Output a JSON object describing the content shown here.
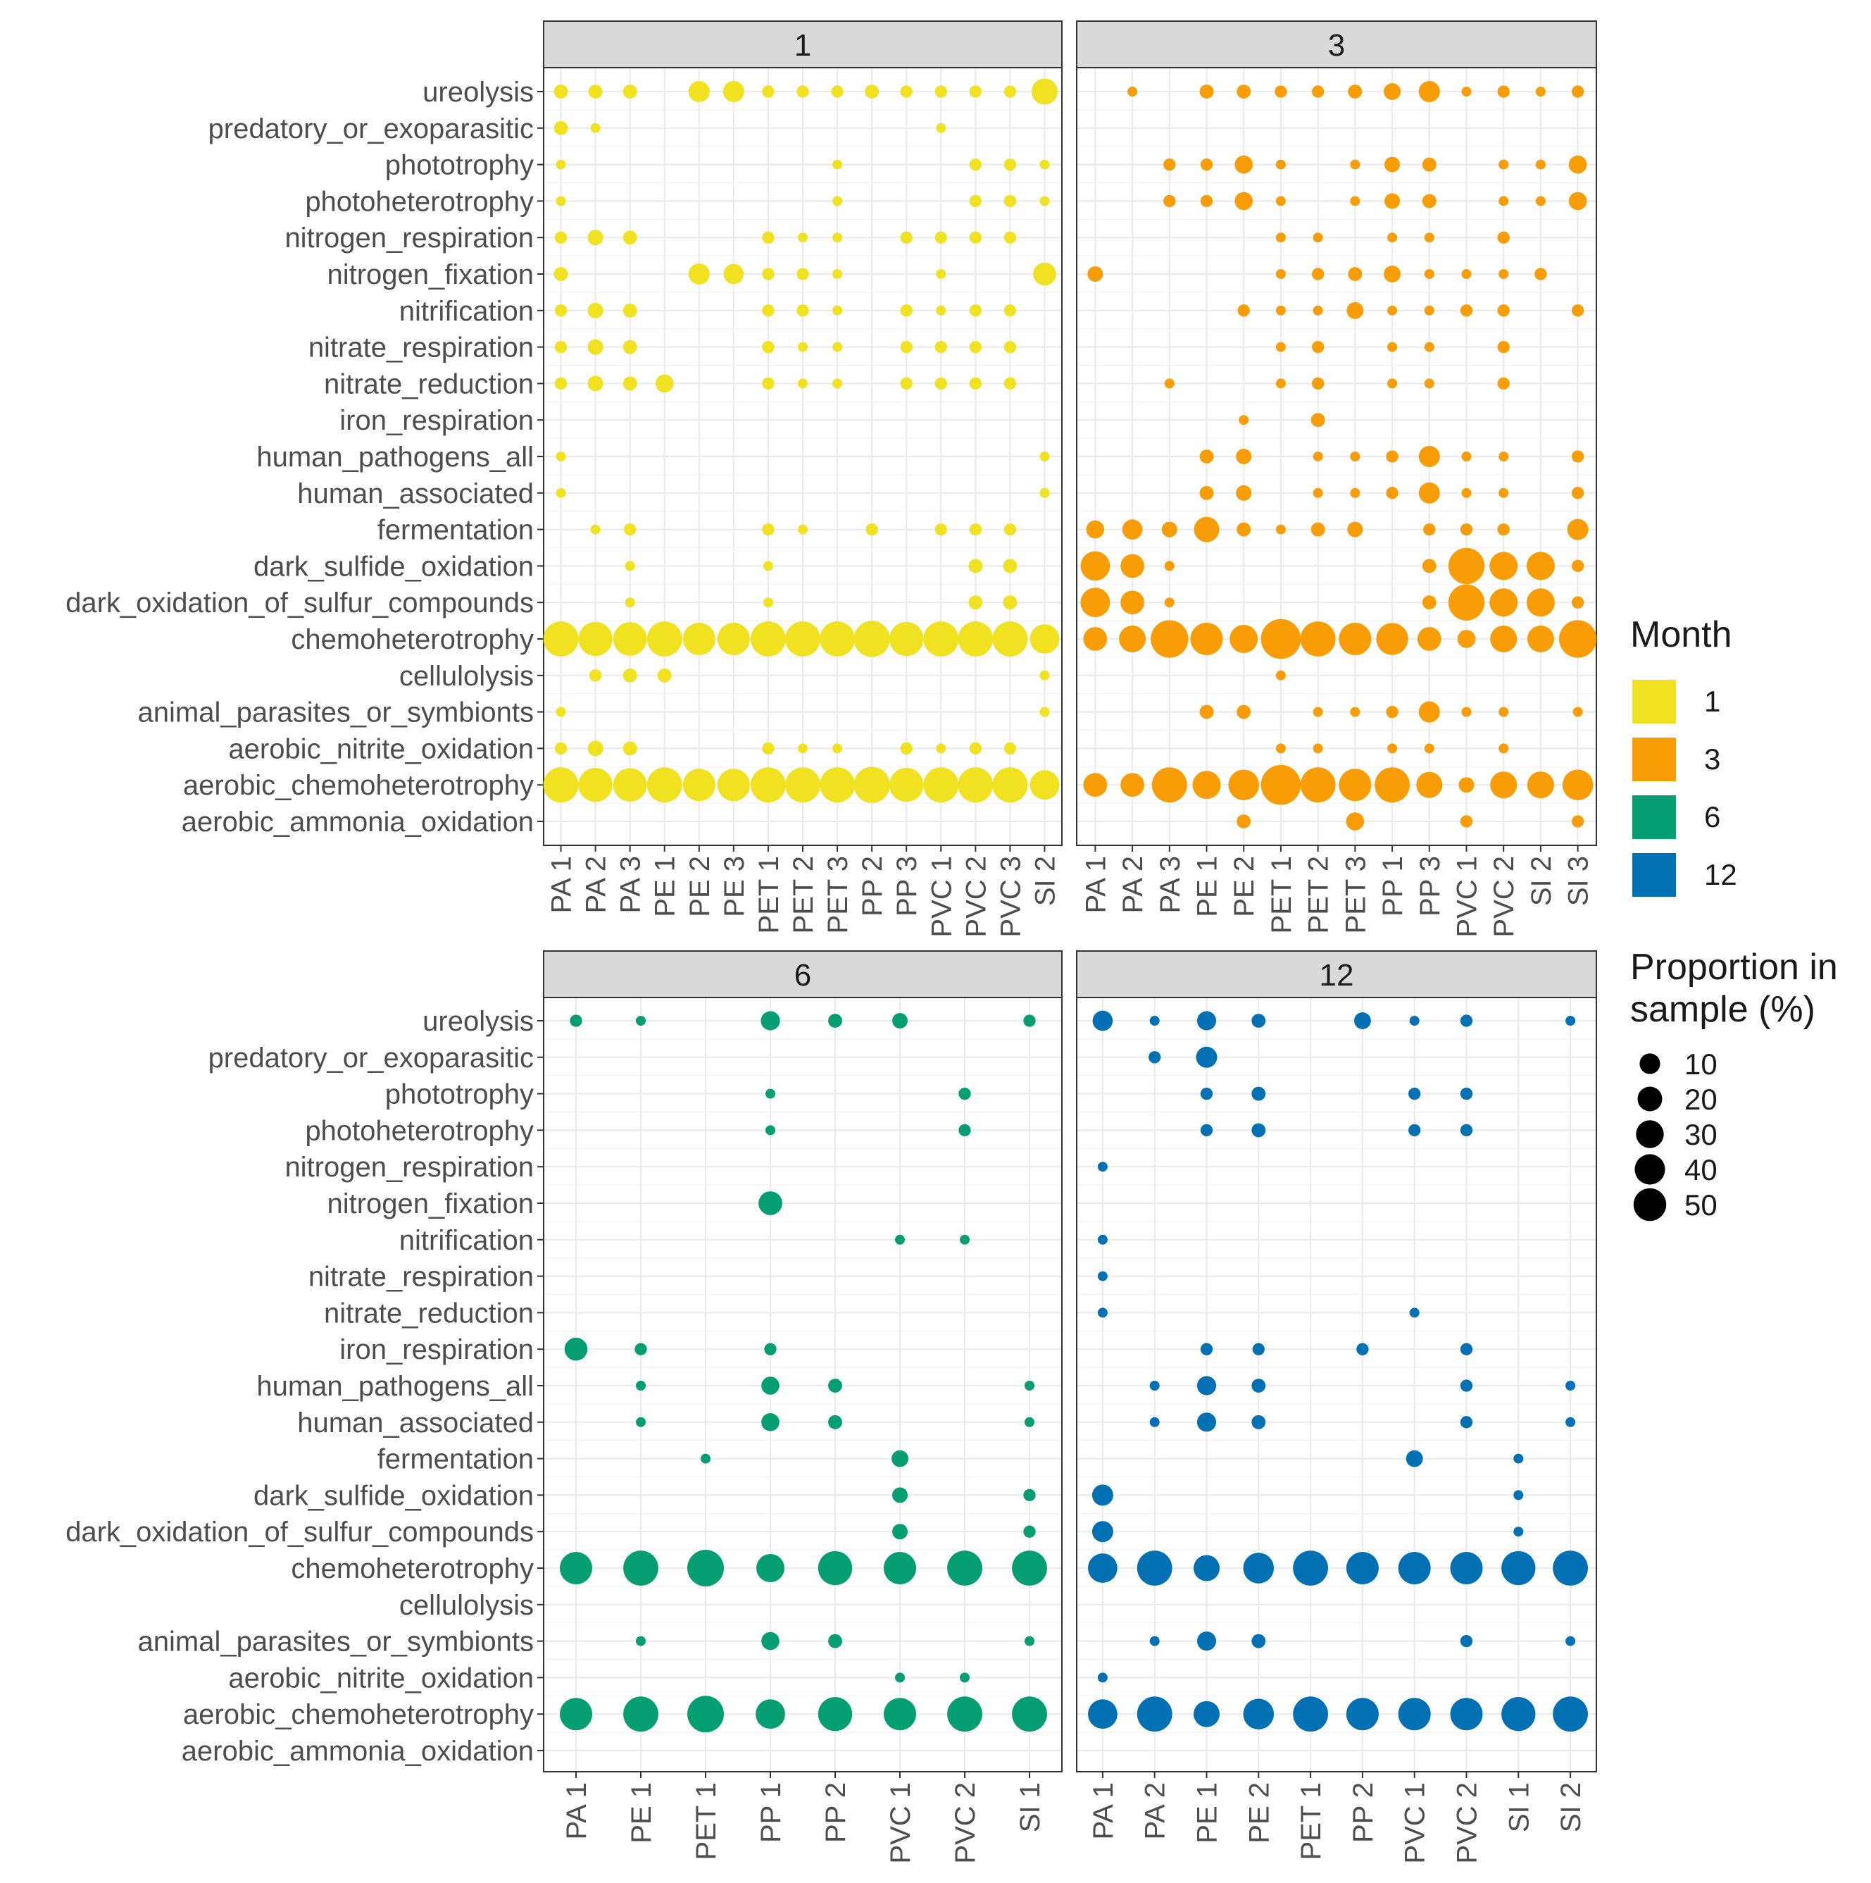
{
  "legend": {
    "color_title": "Month",
    "size_title_lines": [
      "Proportion in",
      "sample (%)"
    ],
    "month_entries": [
      {
        "label": "1",
        "color": "#F0E221"
      },
      {
        "label": "3",
        "color": "#F99D06"
      },
      {
        "label": "6",
        "color": "#049E72"
      },
      {
        "label": "12",
        "color": "#0271B3"
      }
    ],
    "size_entries": [
      {
        "label": "10",
        "value": 10
      },
      {
        "label": "20",
        "value": 20
      },
      {
        "label": "30",
        "value": 30
      },
      {
        "label": "40",
        "value": 40
      },
      {
        "label": "50",
        "value": 50
      }
    ]
  },
  "chart_data": {
    "type": "scatter",
    "subtype": "bubble grid, faceted by month",
    "size_variable": "Proportion in sample (%)",
    "color_variable": "Month",
    "functions": [
      "ureolysis",
      "predatory_or_exoparasitic",
      "phototrophy",
      "photoheterotrophy",
      "nitrogen_respiration",
      "nitrogen_fixation",
      "nitrification",
      "nitrate_respiration",
      "nitrate_reduction",
      "iron_respiration",
      "human_pathogens_all",
      "human_associated",
      "fermentation",
      "dark_sulfide_oxidation",
      "dark_oxidation_of_sulfur_compounds",
      "chemoheterotrophy",
      "cellulolysis",
      "animal_parasites_or_symbionts",
      "aerobic_nitrite_oxidation",
      "aerobic_chemoheterotrophy",
      "aerobic_ammonia_oxidation"
    ],
    "facets": [
      {
        "title": "1",
        "color": "#F0E221",
        "samples": [
          "PA 1",
          "PA 2",
          "PA 3",
          "PE 1",
          "PE 2",
          "PE 3",
          "PET 1",
          "PET 2",
          "PET 3",
          "PP 2",
          "PP 3",
          "PVC 1",
          "PVC 2",
          "PVC 3",
          "SI 2"
        ],
        "rows": [
          [
            3,
            3,
            3,
            0,
            9,
            9,
            2,
            2,
            2,
            3,
            2,
            2,
            2,
            2,
            15
          ],
          [
            3,
            1,
            0,
            0,
            0,
            0,
            0,
            0,
            0,
            0,
            0,
            1,
            0,
            0,
            0
          ],
          [
            1,
            0,
            0,
            0,
            0,
            0,
            0,
            0,
            1,
            0,
            0,
            0,
            2,
            2,
            1
          ],
          [
            1,
            0,
            0,
            0,
            0,
            0,
            0,
            0,
            1,
            0,
            0,
            0,
            2,
            2,
            1
          ],
          [
            2,
            4,
            3,
            0,
            0,
            0,
            2,
            1,
            1,
            0,
            2,
            2,
            2,
            2,
            0
          ],
          [
            3,
            0,
            0,
            0,
            9,
            8,
            2,
            2,
            1,
            0,
            0,
            1,
            0,
            0,
            11
          ],
          [
            2,
            4,
            3,
            0,
            0,
            0,
            2,
            2,
            1,
            0,
            2,
            1,
            2,
            2,
            0
          ],
          [
            2,
            4,
            3,
            0,
            0,
            0,
            2,
            1,
            1,
            0,
            2,
            2,
            2,
            2,
            0
          ],
          [
            2,
            4,
            3,
            6,
            0,
            0,
            2,
            1,
            1,
            0,
            2,
            2,
            2,
            2,
            0
          ],
          [
            0,
            0,
            0,
            0,
            0,
            0,
            0,
            0,
            0,
            0,
            0,
            0,
            0,
            0,
            0
          ],
          [
            1,
            0,
            0,
            0,
            0,
            0,
            0,
            0,
            0,
            0,
            0,
            0,
            0,
            0,
            1
          ],
          [
            1,
            0,
            0,
            0,
            0,
            0,
            0,
            0,
            0,
            0,
            0,
            0,
            0,
            0,
            1
          ],
          [
            0,
            1,
            2,
            0,
            0,
            0,
            2,
            1,
            0,
            2,
            0,
            2,
            2,
            2,
            0
          ],
          [
            0,
            0,
            1,
            0,
            0,
            0,
            1,
            0,
            0,
            0,
            0,
            0,
            3,
            3,
            0
          ],
          [
            0,
            0,
            1,
            0,
            0,
            0,
            1,
            0,
            0,
            0,
            0,
            0,
            3,
            3,
            0
          ],
          [
            30,
            28,
            27,
            30,
            25,
            25,
            30,
            30,
            30,
            32,
            28,
            30,
            30,
            30,
            20
          ],
          [
            0,
            2,
            3,
            3,
            0,
            0,
            0,
            0,
            0,
            0,
            0,
            0,
            0,
            0,
            1
          ],
          [
            1,
            0,
            0,
            0,
            0,
            0,
            0,
            0,
            0,
            0,
            0,
            0,
            0,
            0,
            1
          ],
          [
            2,
            4,
            3,
            0,
            0,
            0,
            2,
            1,
            1,
            0,
            2,
            1,
            2,
            2,
            0
          ],
          [
            30,
            28,
            27,
            30,
            25,
            25,
            30,
            30,
            30,
            32,
            28,
            30,
            30,
            30,
            20
          ],
          [
            0,
            0,
            0,
            0,
            0,
            0,
            0,
            0,
            0,
            0,
            0,
            0,
            0,
            0,
            0
          ]
        ]
      },
      {
        "title": "3",
        "color": "#F99D06",
        "samples": [
          "PA 1",
          "PA 2",
          "PA 3",
          "PE 1",
          "PE 2",
          "PET 1",
          "PET 2",
          "PET 3",
          "PP 1",
          "PP 3",
          "PVC 1",
          "PVC 2",
          "SI 2",
          "SI 3"
        ],
        "rows": [
          [
            0,
            1,
            0,
            3,
            3,
            2,
            2,
            3,
            5,
            9,
            1,
            2,
            1,
            2
          ],
          [
            0,
            0,
            0,
            0,
            0,
            0,
            0,
            0,
            0,
            0,
            0,
            0,
            0,
            0
          ],
          [
            0,
            0,
            2,
            2,
            6,
            1,
            0,
            1,
            4,
            3,
            0,
            1,
            1,
            6
          ],
          [
            0,
            0,
            2,
            2,
            6,
            1,
            0,
            1,
            4,
            3,
            0,
            1,
            1,
            6
          ],
          [
            0,
            0,
            0,
            0,
            0,
            1,
            1,
            0,
            1,
            1,
            0,
            2,
            0,
            0
          ],
          [
            4,
            0,
            0,
            0,
            0,
            1,
            2,
            3,
            5,
            1,
            1,
            1,
            2,
            0
          ],
          [
            0,
            0,
            0,
            0,
            2,
            1,
            1,
            5,
            1,
            1,
            2,
            2,
            0,
            2
          ],
          [
            0,
            0,
            0,
            0,
            0,
            1,
            2,
            0,
            1,
            1,
            0,
            2,
            0,
            0
          ],
          [
            0,
            0,
            1,
            0,
            0,
            1,
            2,
            0,
            1,
            1,
            0,
            2,
            0,
            0
          ],
          [
            0,
            0,
            0,
            0,
            1,
            0,
            3,
            0,
            0,
            0,
            0,
            0,
            0,
            0
          ],
          [
            0,
            0,
            0,
            3,
            4,
            0,
            1,
            1,
            2,
            9,
            1,
            1,
            0,
            2
          ],
          [
            0,
            0,
            0,
            3,
            4,
            0,
            1,
            1,
            2,
            9,
            1,
            1,
            0,
            2
          ],
          [
            6,
            8,
            4,
            14,
            3,
            1,
            3,
            4,
            0,
            2,
            2,
            2,
            0,
            9
          ],
          [
            20,
            12,
            1,
            0,
            0,
            0,
            0,
            0,
            0,
            3,
            32,
            18,
            18,
            2
          ],
          [
            20,
            12,
            1,
            0,
            0,
            0,
            0,
            0,
            0,
            3,
            32,
            18,
            18,
            2
          ],
          [
            12,
            16,
            35,
            25,
            18,
            40,
            30,
            25,
            24,
            12,
            6,
            16,
            16,
            35
          ],
          [
            0,
            0,
            0,
            0,
            0,
            1,
            0,
            0,
            0,
            0,
            0,
            0,
            0,
            0
          ],
          [
            0,
            0,
            0,
            3,
            3,
            0,
            1,
            1,
            2,
            9,
            1,
            1,
            0,
            1
          ],
          [
            0,
            0,
            0,
            0,
            0,
            1,
            1,
            0,
            1,
            1,
            0,
            1,
            0,
            0
          ],
          [
            12,
            12,
            30,
            18,
            22,
            40,
            30,
            25,
            30,
            15,
            4,
            16,
            16,
            22
          ],
          [
            0,
            0,
            0,
            0,
            3,
            0,
            0,
            6,
            0,
            0,
            2,
            0,
            0,
            2
          ]
        ]
      },
      {
        "title": "6",
        "color": "#049E72",
        "samples": [
          "PA 1",
          "PE 1",
          "PET 1",
          "PP 1",
          "PP 2",
          "PVC 1",
          "PVC 2",
          "SI 1"
        ],
        "rows": [
          [
            2,
            1,
            0,
            7,
            3,
            4,
            0,
            2
          ],
          [
            0,
            0,
            0,
            0,
            0,
            0,
            0,
            0
          ],
          [
            0,
            0,
            0,
            1,
            0,
            0,
            2,
            0
          ],
          [
            0,
            0,
            0,
            1,
            0,
            0,
            2,
            0
          ],
          [
            0,
            0,
            0,
            0,
            0,
            0,
            0,
            0
          ],
          [
            0,
            0,
            0,
            12,
            0,
            0,
            0,
            0
          ],
          [
            0,
            0,
            0,
            0,
            0,
            1,
            1,
            0
          ],
          [
            0,
            0,
            0,
            0,
            0,
            0,
            0,
            0
          ],
          [
            0,
            0,
            0,
            0,
            0,
            0,
            0,
            0
          ],
          [
            11,
            2,
            0,
            2,
            0,
            0,
            0,
            0
          ],
          [
            0,
            1,
            0,
            6,
            3,
            0,
            0,
            1
          ],
          [
            0,
            1,
            0,
            6,
            3,
            0,
            0,
            1
          ],
          [
            0,
            0,
            1,
            0,
            0,
            5,
            0,
            0
          ],
          [
            0,
            0,
            0,
            0,
            0,
            4,
            0,
            2
          ],
          [
            0,
            0,
            0,
            0,
            0,
            4,
            0,
            2
          ],
          [
            25,
            30,
            33,
            18,
            28,
            25,
            30,
            30
          ],
          [
            0,
            0,
            0,
            0,
            0,
            0,
            0,
            0
          ],
          [
            0,
            1,
            0,
            6,
            3,
            0,
            0,
            1
          ],
          [
            0,
            0,
            0,
            0,
            0,
            1,
            1,
            0
          ],
          [
            25,
            30,
            33,
            20,
            28,
            25,
            30,
            30
          ],
          [
            0,
            0,
            0,
            0,
            0,
            0,
            0,
            0
          ]
        ]
      },
      {
        "title": "12",
        "color": "#0271B3",
        "samples": [
          "PA 1",
          "PA 2",
          "PE 1",
          "PE 2",
          "PET 1",
          "PP 2",
          "PVC 1",
          "PVC 2",
          "SI 1",
          "SI 2"
        ],
        "rows": [
          [
            8,
            1,
            7,
            3,
            0,
            5,
            1,
            2,
            0,
            1
          ],
          [
            0,
            2,
            9,
            0,
            0,
            0,
            0,
            0,
            0,
            0
          ],
          [
            0,
            0,
            2,
            3,
            0,
            0,
            2,
            2,
            0,
            0
          ],
          [
            0,
            0,
            2,
            3,
            0,
            0,
            2,
            2,
            0,
            0
          ],
          [
            1,
            0,
            0,
            0,
            0,
            0,
            0,
            0,
            0,
            0
          ],
          [
            0,
            0,
            0,
            0,
            0,
            0,
            0,
            0,
            0,
            0
          ],
          [
            1,
            0,
            0,
            0,
            0,
            0,
            0,
            0,
            0,
            0
          ],
          [
            1,
            0,
            0,
            0,
            0,
            0,
            0,
            0,
            0,
            0
          ],
          [
            1,
            0,
            0,
            0,
            0,
            0,
            1,
            0,
            0,
            0
          ],
          [
            0,
            0,
            2,
            2,
            0,
            2,
            0,
            2,
            0,
            0
          ],
          [
            0,
            1,
            7,
            3,
            0,
            0,
            0,
            2,
            0,
            1
          ],
          [
            0,
            1,
            7,
            3,
            0,
            0,
            0,
            2,
            0,
            1
          ],
          [
            0,
            0,
            0,
            0,
            0,
            0,
            5,
            0,
            1,
            0
          ],
          [
            9,
            0,
            0,
            0,
            0,
            0,
            0,
            0,
            1,
            0
          ],
          [
            9,
            0,
            0,
            0,
            0,
            0,
            0,
            0,
            1,
            0
          ],
          [
            20,
            30,
            15,
            22,
            30,
            25,
            25,
            25,
            28,
            30
          ],
          [
            0,
            0,
            0,
            0,
            0,
            0,
            0,
            0,
            0,
            0
          ],
          [
            0,
            1,
            7,
            3,
            0,
            0,
            0,
            2,
            0,
            1
          ],
          [
            1,
            0,
            0,
            0,
            0,
            0,
            0,
            0,
            0,
            0
          ],
          [
            20,
            30,
            15,
            22,
            30,
            25,
            25,
            25,
            28,
            30
          ],
          [
            0,
            0,
            0,
            0,
            0,
            0,
            0,
            0,
            0,
            0
          ]
        ]
      }
    ]
  }
}
